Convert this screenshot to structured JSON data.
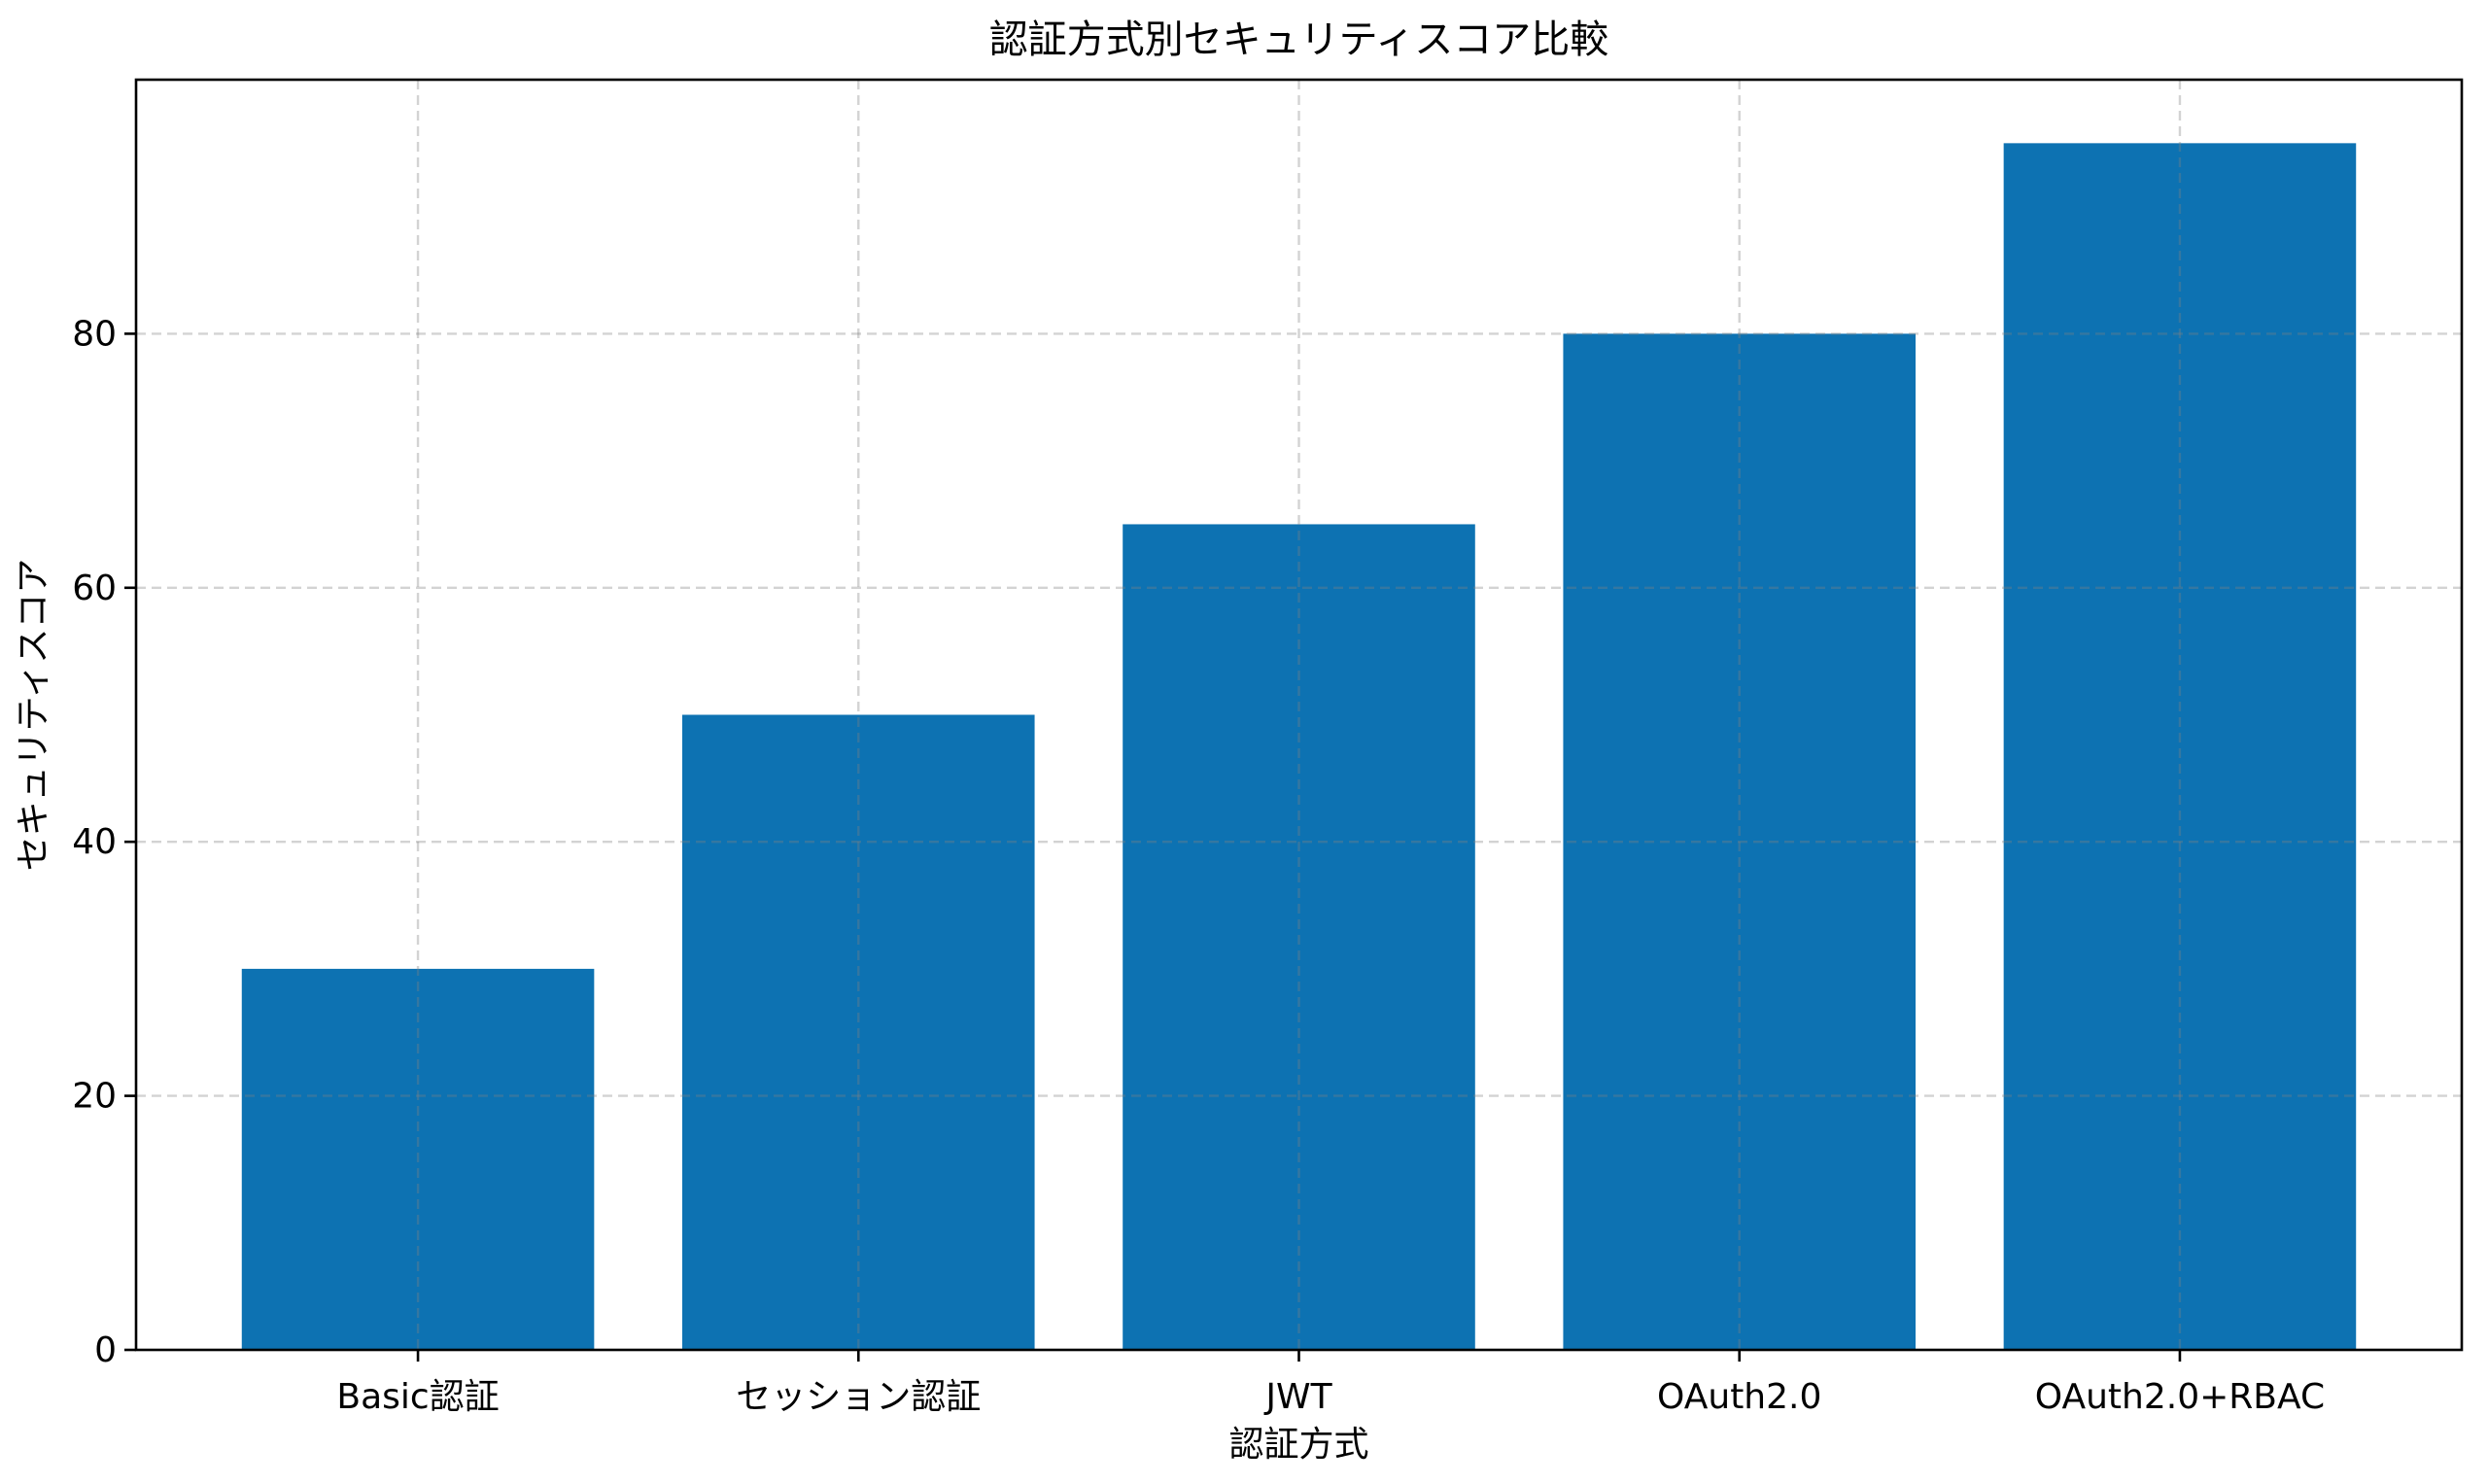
{
  "figure": {
    "background": "#ffffff",
    "text_color": "#000000",
    "spine_color": "#000000"
  },
  "chart_data": {
    "type": "bar",
    "title": "認証方式別セキュリティスコア比較",
    "xlabel": "認証方式",
    "ylabel": "セキュリティスコア",
    "categories": [
      "Basic認証",
      "セッション認証",
      "JWT",
      "OAuth2.0",
      "OAuth2.0+RBAC"
    ],
    "values": [
      30,
      50,
      65,
      80,
      95
    ],
    "ylim": [
      0,
      100
    ],
    "yticks": [
      0,
      20,
      40,
      60,
      80
    ],
    "bar_color": "#0d72b2",
    "grid": true,
    "grid_linestyle": "dashed",
    "grid_color": "#808080",
    "grid_opacity": 0.35,
    "grid_above_bars": true,
    "legend_position": "none"
  }
}
